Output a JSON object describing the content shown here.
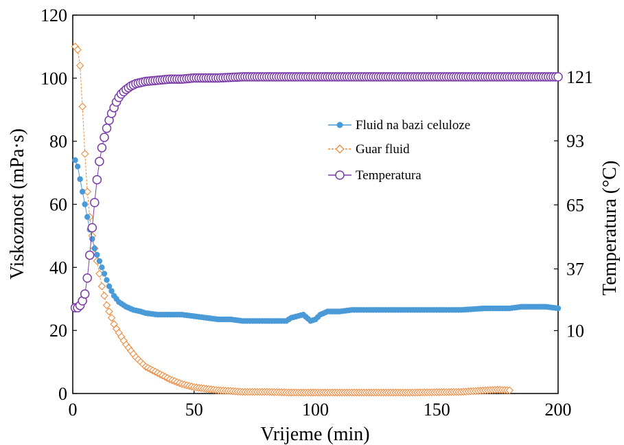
{
  "chart_data": {
    "type": "line",
    "xlabel": "Vrijeme (min)",
    "ylabel": "Viskoznost (mPa·s)",
    "y2label": "Temperatura (°C)",
    "xlim": [
      0,
      200
    ],
    "ylim": [
      0,
      120
    ],
    "y2lim": [
      -17.5,
      148
    ],
    "xticks": [
      "0",
      "50",
      "100",
      "150",
      "200"
    ],
    "yticks": [
      "0",
      "20",
      "40",
      "60",
      "80",
      "100",
      "120"
    ],
    "y2ticks": [
      "10",
      "37",
      "65",
      "93",
      "121"
    ],
    "y2tick_values": [
      10,
      37,
      65,
      93,
      121
    ],
    "grid": false,
    "legend_position": "upper-middle-right",
    "colors": {
      "cellulose": "#4a9ad8",
      "guar": "#ee8a3c",
      "temperature": "#7a3ba6"
    },
    "series": [
      {
        "name": "Fluid na bazi celuloze",
        "axis": "left",
        "marker": "filled-circle",
        "x": [
          1,
          2,
          3,
          4,
          5,
          6,
          7,
          8,
          9,
          10,
          11,
          12,
          13,
          14,
          15,
          16,
          17,
          18,
          19,
          20,
          22,
          25,
          28,
          30,
          35,
          40,
          45,
          50,
          55,
          60,
          65,
          70,
          75,
          80,
          85,
          88,
          90,
          95,
          98,
          100,
          102,
          105,
          110,
          115,
          120,
          130,
          140,
          150,
          160,
          170,
          180,
          185,
          190,
          195,
          200
        ],
        "y": [
          74,
          72,
          68,
          64,
          60,
          56,
          52,
          49,
          46,
          44,
          42,
          40,
          38,
          36,
          34,
          32.5,
          31,
          30,
          29,
          28.5,
          27.5,
          26.5,
          26,
          25.5,
          25,
          25,
          25,
          24.5,
          24,
          23.5,
          23.5,
          23,
          23,
          23,
          23,
          23,
          24,
          25,
          23,
          23.5,
          25,
          26,
          26,
          26.5,
          26.5,
          26.5,
          26.5,
          26.5,
          26.5,
          27,
          27,
          27.5,
          27.5,
          27.5,
          27
        ]
      },
      {
        "name": "Guar fluid",
        "axis": "left",
        "marker": "open-diamond",
        "x": [
          1,
          2,
          3,
          4,
          5,
          6,
          7,
          8,
          9,
          10,
          11,
          12,
          13,
          14,
          15,
          16,
          17,
          18,
          20,
          22,
          24,
          26,
          28,
          30,
          35,
          40,
          45,
          50,
          55,
          60,
          65,
          70,
          80,
          90,
          100,
          120,
          140,
          160,
          170,
          175,
          180
        ],
        "y": [
          110,
          109,
          104,
          91,
          76,
          64,
          56,
          50,
          46,
          42,
          38,
          34,
          31,
          28,
          26,
          24,
          22,
          20.5,
          18,
          15.5,
          13.5,
          11.5,
          10,
          8.5,
          6.5,
          4.5,
          3,
          2,
          1.5,
          1,
          0.8,
          0.5,
          0.5,
          0.3,
          0.3,
          0.3,
          0.3,
          0.5,
          1,
          1.2,
          1
        ]
      },
      {
        "name": "Temperatura",
        "axis": "right",
        "marker": "open-circle",
        "x": [
          1,
          2,
          3,
          4,
          5,
          6,
          7,
          8,
          9,
          10,
          11,
          12,
          13,
          14,
          15,
          16,
          17,
          18,
          19,
          20,
          22,
          24,
          26,
          28,
          30,
          35,
          40,
          45,
          50,
          55,
          60,
          70,
          80,
          100,
          120,
          140,
          160,
          180,
          200
        ],
        "y": [
          20,
          20,
          21,
          23,
          26,
          33,
          43,
          55,
          66,
          76,
          84,
          90,
          94.5,
          98.5,
          102,
          105,
          107.5,
          110,
          112,
          113.5,
          115.5,
          117,
          118,
          118.5,
          119,
          119.5,
          120,
          120,
          120.5,
          120.5,
          120.5,
          121,
          121,
          121,
          121,
          121,
          121,
          121,
          121
        ]
      }
    ]
  }
}
